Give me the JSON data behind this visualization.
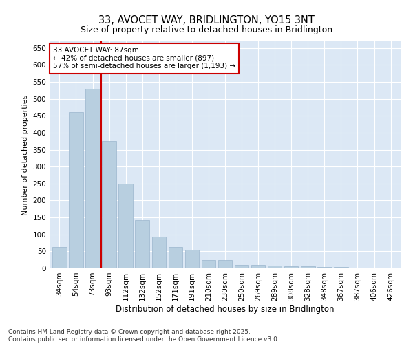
{
  "title": "33, AVOCET WAY, BRIDLINGTON, YO15 3NT",
  "subtitle": "Size of property relative to detached houses in Bridlington",
  "xlabel": "Distribution of detached houses by size in Bridlington",
  "ylabel": "Number of detached properties",
  "categories": [
    "34sqm",
    "54sqm",
    "73sqm",
    "93sqm",
    "112sqm",
    "132sqm",
    "152sqm",
    "171sqm",
    "191sqm",
    "210sqm",
    "230sqm",
    "250sqm",
    "269sqm",
    "289sqm",
    "308sqm",
    "328sqm",
    "348sqm",
    "367sqm",
    "387sqm",
    "406sqm",
    "426sqm"
  ],
  "values": [
    62,
    460,
    530,
    375,
    250,
    142,
    93,
    62,
    55,
    25,
    25,
    10,
    10,
    8,
    6,
    6,
    5,
    4,
    3,
    3,
    2
  ],
  "bar_color": "#b8cfe0",
  "bar_edge_color": "#9ab5cc",
  "vline_x": 2.5,
  "vline_color": "#cc0000",
  "annotation_text": "33 AVOCET WAY: 87sqm\n← 42% of detached houses are smaller (897)\n57% of semi-detached houses are larger (1,193) →",
  "annotation_box_color": "#cc0000",
  "annotation_fill": "#ffffff",
  "ylim": [
    0,
    670
  ],
  "yticks": [
    0,
    50,
    100,
    150,
    200,
    250,
    300,
    350,
    400,
    450,
    500,
    550,
    600,
    650
  ],
  "bg_color": "#dce8f5",
  "footer": "Contains HM Land Registry data © Crown copyright and database right 2025.\nContains public sector information licensed under the Open Government Licence v3.0.",
  "title_fontsize": 10.5,
  "subtitle_fontsize": 9,
  "xlabel_fontsize": 8.5,
  "ylabel_fontsize": 8,
  "tick_fontsize": 7.5,
  "annotation_fontsize": 7.5,
  "footer_fontsize": 6.5
}
